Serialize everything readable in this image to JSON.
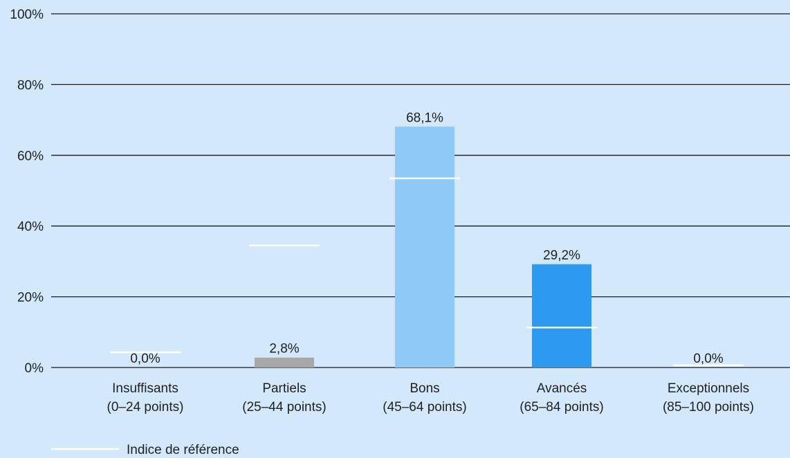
{
  "chart_data": {
    "type": "bar",
    "title": "",
    "xlabel": "",
    "ylabel": "",
    "ylim": [
      0,
      100
    ],
    "y_ticks": [
      0,
      20,
      40,
      60,
      80,
      100
    ],
    "y_tick_labels": [
      "0%",
      "20%",
      "40%",
      "60%",
      "80%",
      "100%"
    ],
    "grid": true,
    "categories": [
      {
        "line1": "Insuffisants",
        "line2": "(0–24 points)"
      },
      {
        "line1": "Partiels",
        "line2": "(25–44 points)"
      },
      {
        "line1": "Bons",
        "line2": "(45–64 points)"
      },
      {
        "line1": "Avancés",
        "line2": "(65–84 points)"
      },
      {
        "line1": "Exceptionnels",
        "line2": "(85–100 points)"
      }
    ],
    "values": [
      0.0,
      2.8,
      68.1,
      29.2,
      0.0
    ],
    "value_labels": [
      "0,0%",
      "2,8%",
      "68,1%",
      "29,2%",
      "0,0%"
    ],
    "bar_colors": [
      "#9e9e9e",
      "#a8a8a8",
      "#8ec9f7",
      "#2d99f0",
      "#2d99f0"
    ],
    "benchmark": {
      "name": "Indice de référence",
      "values": [
        4.3,
        34.5,
        53.5,
        11.3,
        0.6
      ],
      "color": "#ffffff"
    },
    "legend_position": "bottom-left",
    "colors": {
      "background": "#d3e9fb",
      "gridline": "#1a1a1a",
      "text": "#1f1f1f"
    }
  }
}
